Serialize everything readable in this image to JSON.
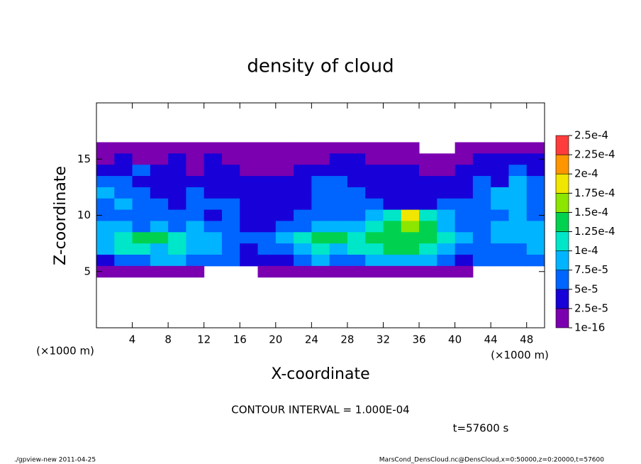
{
  "chart_data": {
    "type": "heatmap",
    "title": "density of cloud",
    "x_label": "X-coordinate",
    "y_label": "Z-coordinate",
    "x_unit": "(×1000 m)",
    "y_unit": "(×1000 m)",
    "contour_note": "CONTOUR INTERVAL = 1.000E-04",
    "time_label": "t=57600 s",
    "footer_left": "./gpview-new  2011-04-25",
    "footer_right": "MarsCond_DensCloud.nc@DensCloud,x=0:50000,z=0:20000,t=57600",
    "xlim": [
      0,
      50
    ],
    "ylim": [
      0,
      20
    ],
    "xticks": [
      4,
      8,
      12,
      16,
      20,
      24,
      28,
      32,
      36,
      40,
      44,
      48
    ],
    "yticks": [
      5,
      10,
      15
    ],
    "cell_width": 2,
    "cell_height": 1,
    "x": [
      1,
      3,
      5,
      7,
      9,
      11,
      13,
      15,
      17,
      19,
      21,
      23,
      25,
      27,
      29,
      31,
      33,
      35,
      37,
      39,
      41,
      43,
      45,
      47,
      49
    ],
    "y": [
      16,
      15,
      14,
      13,
      12,
      11,
      10,
      9,
      8,
      7,
      6,
      5
    ],
    "levels": [
      1e-16,
      {
        "value": 2.5e-05,
        "label": "2.5e-5"
      },
      {
        "value": 5e-05,
        "label": "5e-5"
      },
      {
        "value": 7.5e-05,
        "label": "7.5e-5"
      },
      {
        "value": 0.0001,
        "label": "1e-4"
      },
      {
        "value": 0.000125,
        "label": "1.25e-4"
      },
      {
        "value": 0.00015,
        "label": "1.5e-4"
      },
      {
        "value": 0.000175,
        "label": "1.75e-4"
      },
      {
        "value": 0.0002,
        "label": "2e-4"
      },
      {
        "value": 0.000225,
        "label": "2.25e-4"
      },
      {
        "value": 0.00025,
        "label": "2.5e-4"
      }
    ],
    "colors": [
      "#7a00b0",
      "#1800d8",
      "#0064ff",
      "#00b4ff",
      "#00e6c8",
      "#00d250",
      "#8ce600",
      "#f0e600",
      "#ff9600",
      "#ff3c3c"
    ],
    "values": [
      [
        1e-05,
        1e-05,
        1e-05,
        1e-05,
        1e-05,
        1e-05,
        1e-05,
        1e-05,
        1e-05,
        1e-05,
        1e-05,
        1e-05,
        1e-05,
        1e-05,
        1e-05,
        1e-05,
        1e-05,
        1e-05,
        null,
        null,
        1e-05,
        1e-05,
        1e-05,
        1e-05,
        1e-05
      ],
      [
        1e-05,
        3.5e-05,
        1e-05,
        1e-05,
        3.5e-05,
        1e-05,
        3.5e-05,
        1e-05,
        1e-05,
        1e-05,
        1e-05,
        1e-05,
        1e-05,
        3.5e-05,
        3.5e-05,
        1e-05,
        1e-05,
        1e-05,
        1e-05,
        1e-05,
        1e-05,
        3.5e-05,
        3.5e-05,
        3.5e-05,
        3.5e-05
      ],
      [
        3.5e-05,
        3.5e-05,
        6e-05,
        3.5e-05,
        3.5e-05,
        1e-05,
        3.5e-05,
        3.5e-05,
        1e-05,
        1e-05,
        1e-05,
        3.5e-05,
        3.5e-05,
        3.5e-05,
        3.5e-05,
        3.5e-05,
        3.5e-05,
        3.5e-05,
        1e-05,
        1e-05,
        3.5e-05,
        3.5e-05,
        3.5e-05,
        6e-05,
        3.5e-05
      ],
      [
        6e-05,
        6e-05,
        3.5e-05,
        3.5e-05,
        3.5e-05,
        3.5e-05,
        3.5e-05,
        3.5e-05,
        3.5e-05,
        3.5e-05,
        3.5e-05,
        3.5e-05,
        6e-05,
        6e-05,
        3.5e-05,
        3.5e-05,
        3.5e-05,
        3.5e-05,
        3.5e-05,
        3.5e-05,
        3.5e-05,
        6e-05,
        3.5e-05,
        8.5e-05,
        6e-05
      ],
      [
        8.5e-05,
        6e-05,
        6e-05,
        3.5e-05,
        3.5e-05,
        6e-05,
        3.5e-05,
        3.5e-05,
        3.5e-05,
        3.5e-05,
        3.5e-05,
        3.5e-05,
        6e-05,
        6e-05,
        6e-05,
        3.5e-05,
        3.5e-05,
        3.5e-05,
        3.5e-05,
        3.5e-05,
        3.5e-05,
        6e-05,
        8.5e-05,
        8.5e-05,
        6e-05
      ],
      [
        6e-05,
        8.5e-05,
        6e-05,
        6e-05,
        3.5e-05,
        6e-05,
        6e-05,
        6e-05,
        3.5e-05,
        3.5e-05,
        3.5e-05,
        3.5e-05,
        6e-05,
        6e-05,
        6e-05,
        6e-05,
        3.5e-05,
        3.5e-05,
        3.5e-05,
        6e-05,
        6e-05,
        6e-05,
        8.5e-05,
        8.5e-05,
        6e-05
      ],
      [
        6e-05,
        6e-05,
        6e-05,
        6e-05,
        6e-05,
        6e-05,
        3.5e-05,
        6e-05,
        3.5e-05,
        3.5e-05,
        3.5e-05,
        6e-05,
        6e-05,
        6e-05,
        6e-05,
        8.5e-05,
        0.00011,
        0.00019,
        0.00011,
        8.5e-05,
        6e-05,
        6e-05,
        6e-05,
        8.5e-05,
        6e-05
      ],
      [
        8.5e-05,
        8.5e-05,
        6e-05,
        8.5e-05,
        6e-05,
        8.5e-05,
        6e-05,
        6e-05,
        3.5e-05,
        3.5e-05,
        6e-05,
        6e-05,
        8.5e-05,
        8.5e-05,
        8.5e-05,
        0.00011,
        0.00014,
        0.00016,
        0.00014,
        8.5e-05,
        6e-05,
        6e-05,
        8.5e-05,
        8.5e-05,
        8.5e-05
      ],
      [
        8.5e-05,
        0.00011,
        0.00014,
        0.00014,
        0.00011,
        8.5e-05,
        8.5e-05,
        6e-05,
        6e-05,
        6e-05,
        8.5e-05,
        0.00011,
        0.00014,
        0.00014,
        0.00011,
        0.00014,
        0.00014,
        0.00014,
        0.00014,
        0.00011,
        8.5e-05,
        6e-05,
        8.5e-05,
        8.5e-05,
        8.5e-05
      ],
      [
        8.5e-05,
        0.00011,
        0.00011,
        8.5e-05,
        0.00011,
        8.5e-05,
        8.5e-05,
        6e-05,
        3.5e-05,
        6e-05,
        6e-05,
        8.5e-05,
        0.00011,
        8.5e-05,
        0.00011,
        0.00011,
        0.00014,
        0.00014,
        0.00011,
        8.5e-05,
        6e-05,
        6e-05,
        6e-05,
        6e-05,
        8.5e-05
      ],
      [
        3.5e-05,
        6e-05,
        6e-05,
        8.5e-05,
        8.5e-05,
        6e-05,
        6e-05,
        6e-05,
        3.5e-05,
        3.5e-05,
        3.5e-05,
        6e-05,
        8.5e-05,
        6e-05,
        6e-05,
        8.5e-05,
        8.5e-05,
        8.5e-05,
        8.5e-05,
        6e-05,
        3.5e-05,
        6e-05,
        6e-05,
        6e-05,
        6e-05
      ],
      [
        1e-05,
        1e-05,
        1e-05,
        1e-05,
        1e-05,
        1e-05,
        null,
        null,
        null,
        1e-05,
        1e-05,
        1e-05,
        1e-05,
        1e-05,
        1e-05,
        1e-05,
        1e-05,
        1e-05,
        1e-05,
        1e-05,
        1e-05,
        null,
        null,
        null,
        null
      ]
    ]
  }
}
